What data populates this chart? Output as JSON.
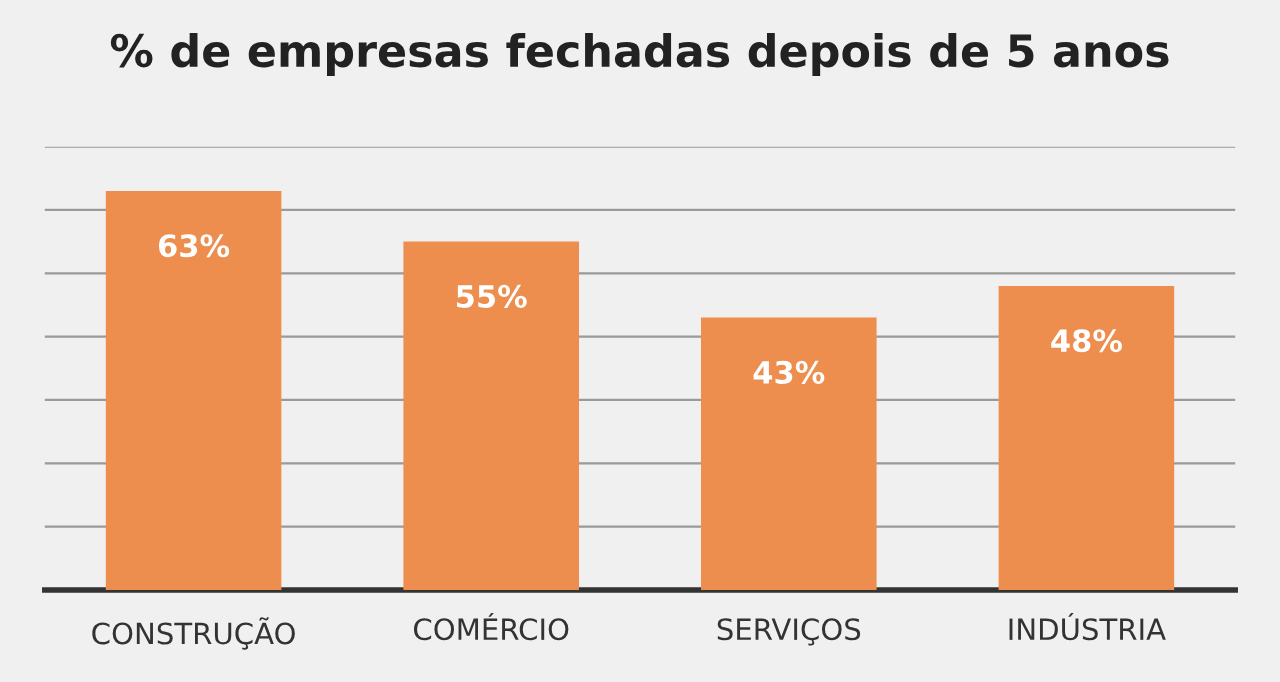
{
  "chart_data": {
    "type": "bar",
    "title": "% de empresas fechadas depois de 5 anos",
    "categories": [
      "CONSTRUÇÃO",
      "COMÉRCIO",
      "SERVIÇOS",
      "INDÚSTRIA"
    ],
    "values": [
      63,
      55,
      43,
      48
    ],
    "value_labels": [
      "63%",
      "55%",
      "43%",
      "48%"
    ],
    "color": "#ed8d4e",
    "ylim": [
      0,
      70
    ],
    "yticks": [
      {
        "value": 10,
        "label": null
      },
      {
        "value": 20,
        "label": null
      },
      {
        "value": 30,
        "label": null
      },
      {
        "value": 40,
        "label": null
      },
      {
        "value": 50,
        "label": null
      },
      {
        "value": 60,
        "label": null
      },
      {
        "value": 70,
        "label": null
      }
    ],
    "grid": "y",
    "tick_labels": "x",
    "legend": false
  }
}
